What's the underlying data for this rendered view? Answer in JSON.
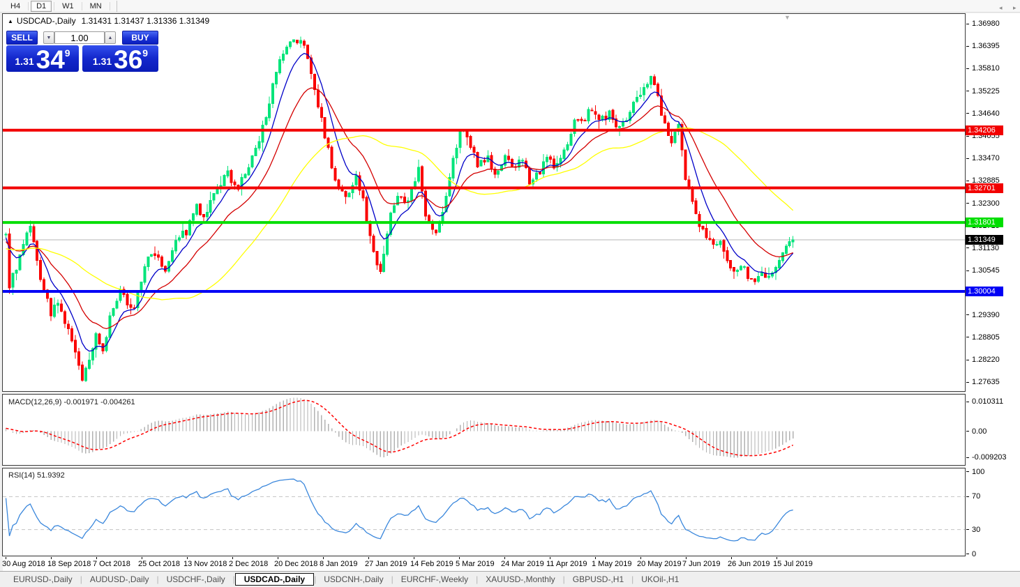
{
  "toolbar": {
    "timeframes": [
      {
        "label": "H4",
        "active": false
      },
      {
        "label": "D1",
        "active": true
      },
      {
        "label": "W1",
        "active": false
      },
      {
        "label": "MN",
        "active": false
      }
    ]
  },
  "window": {
    "title": "USDCAD-,Daily",
    "ohlc": "1.31431 1.31437 1.31336 1.31349",
    "collapse_glyph": "▲",
    "shift_marker_glyph": "▼"
  },
  "trade_panel": {
    "sell_label": "SELL",
    "buy_label": "BUY",
    "volume": "1.00",
    "down_glyph": "▼",
    "up_glyph": "▲",
    "bid": {
      "base": "1.31",
      "big": "34",
      "sup": "9"
    },
    "ask": {
      "base": "1.31",
      "big": "36",
      "sup": "9"
    }
  },
  "tabs": {
    "items": [
      {
        "label": "EURUSD-,Daily",
        "active": false
      },
      {
        "label": "AUDUSD-,Daily",
        "active": false
      },
      {
        "label": "USDCHF-,Daily",
        "active": false
      },
      {
        "label": "USDCAD-,Daily",
        "active": true
      },
      {
        "label": "USDCNH-,Daily",
        "active": false
      },
      {
        "label": "EURCHF-,Weekly",
        "active": false
      },
      {
        "label": "XAUUSD-,Monthly",
        "active": false
      },
      {
        "label": "GBPUSD-,H1",
        "active": false
      },
      {
        "label": "UKOil-,H1",
        "active": false
      }
    ],
    "scroll_left_glyph": "◂",
    "scroll_right_glyph": "▸"
  },
  "chart_data": {
    "type": "candlestick",
    "symbol": "USDCAD-",
    "timeframe": "Daily",
    "main": {
      "ylim": [
        1.27405,
        1.37235
      ],
      "yticks": [
        "1.36980",
        "1.36395",
        "1.35810",
        "1.35225",
        "1.34640",
        "1.34055",
        "1.33470",
        "1.32885",
        "1.32300",
        "1.31715",
        "1.31130",
        "1.30545",
        "1.29390",
        "1.28805",
        "1.28220",
        "1.27635"
      ],
      "hlines": [
        {
          "price": 1.34206,
          "label": "1.34206",
          "color": "#F20000",
          "thickness": 4
        },
        {
          "price": 1.32701,
          "label": "1.32701",
          "color": "#F20000",
          "thickness": 4
        },
        {
          "price": 1.31801,
          "label": "1.31801",
          "color": "#00DE00",
          "thickness": 4
        },
        {
          "price": 1.30004,
          "label": "1.30004",
          "color": "#0000F5",
          "thickness": 4
        }
      ],
      "current": {
        "price": 1.31349,
        "label": "1.31349",
        "line_color": "#B4B4B4",
        "badge_bg": "#000000"
      },
      "bull_color": "#00E47A",
      "bear_color": "#FA0000",
      "ma": [
        {
          "type": "ema",
          "period": 8,
          "color": "#0000C8"
        },
        {
          "type": "ema",
          "period": 20,
          "color": "#D40000"
        },
        {
          "type": "sma",
          "period": 45,
          "color": "#FFFF00"
        }
      ]
    },
    "candles": {
      "count": 228,
      "seed": 9,
      "noise": 0.0011,
      "wick": 0.0021,
      "step": 4.97,
      "body_width": 3,
      "warmup": {
        "count": 60,
        "from": 1.306,
        "to": 1.314
      },
      "close_anchors": [
        [
          0,
          1.314
        ],
        [
          1,
          1.302
        ],
        [
          3,
          1.3065
        ],
        [
          5,
          1.312
        ],
        [
          7,
          1.3165
        ],
        [
          9,
          1.3075
        ],
        [
          11,
          1.3
        ],
        [
          13,
          1.2945
        ],
        [
          15,
          1.2965
        ],
        [
          17,
          1.292
        ],
        [
          19,
          1.2875
        ],
        [
          21,
          1.28
        ],
        [
          22,
          1.2778
        ],
        [
          24,
          1.282
        ],
        [
          26,
          1.289
        ],
        [
          28,
          1.2845
        ],
        [
          30,
          1.293
        ],
        [
          33,
          1.2995
        ],
        [
          35,
          1.2975
        ],
        [
          37,
          1.2955
        ],
        [
          40,
          1.307
        ],
        [
          43,
          1.3105
        ],
        [
          46,
          1.306
        ],
        [
          49,
          1.314
        ],
        [
          52,
          1.3155
        ],
        [
          55,
          1.322
        ],
        [
          57,
          1.3185
        ],
        [
          61,
          1.327
        ],
        [
          64,
          1.3305
        ],
        [
          67,
          1.327
        ],
        [
          70,
          1.3325
        ],
        [
          73,
          1.339
        ],
        [
          76,
          1.35
        ],
        [
          79,
          1.3595
        ],
        [
          82,
          1.3645
        ],
        [
          85,
          1.3655
        ],
        [
          87,
          1.3615
        ],
        [
          90,
          1.348
        ],
        [
          93,
          1.3375
        ],
        [
          95,
          1.3285
        ],
        [
          98,
          1.3245
        ],
        [
          101,
          1.33
        ],
        [
          103,
          1.3235
        ],
        [
          106,
          1.31
        ],
        [
          108,
          1.306
        ],
        [
          111,
          1.3195
        ],
        [
          113,
          1.3255
        ],
        [
          116,
          1.323
        ],
        [
          119,
          1.3315
        ],
        [
          121,
          1.3205
        ],
        [
          124,
          1.315
        ],
        [
          126,
          1.3205
        ],
        [
          129,
          1.334
        ],
        [
          131,
          1.3425
        ],
        [
          134,
          1.338
        ],
        [
          136,
          1.3335
        ],
        [
          139,
          1.335
        ],
        [
          141,
          1.33
        ],
        [
          144,
          1.3345
        ],
        [
          146,
          1.333
        ],
        [
          149,
          1.3335
        ],
        [
          151,
          1.329
        ],
        [
          154,
          1.3315
        ],
        [
          156,
          1.3345
        ],
        [
          159,
          1.3325
        ],
        [
          161,
          1.336
        ],
        [
          164,
          1.345
        ],
        [
          166,
          1.344
        ],
        [
          169,
          1.3475
        ],
        [
          171,
          1.3445
        ],
        [
          174,
          1.3465
        ],
        [
          176,
          1.343
        ],
        [
          179,
          1.344
        ],
        [
          181,
          1.3485
        ],
        [
          184,
          1.3535
        ],
        [
          186,
          1.3565
        ],
        [
          188,
          1.3505
        ],
        [
          190,
          1.3435
        ],
        [
          192,
          1.3385
        ],
        [
          194,
          1.3425
        ],
        [
          196,
          1.3295
        ],
        [
          198,
          1.3235
        ],
        [
          200,
          1.318
        ],
        [
          202,
          1.3145
        ],
        [
          204,
          1.3115
        ],
        [
          206,
          1.3125
        ],
        [
          208,
          1.3085
        ],
        [
          210,
          1.305
        ],
        [
          212,
          1.3068
        ],
        [
          214,
          1.3042
        ],
        [
          216,
          1.3028
        ],
        [
          218,
          1.3058
        ],
        [
          220,
          1.3035
        ],
        [
          222,
          1.3062
        ],
        [
          224,
          1.3098
        ],
        [
          226,
          1.3128
        ],
        [
          227,
          1.31349
        ]
      ]
    },
    "x_axis": {
      "labels": [
        "30 Aug 2018",
        "18 Sep 2018",
        "7 Oct 2018",
        "25 Oct 2018",
        "13 Nov 2018",
        "2 Dec 2018",
        "20 Dec 2018",
        "8 Jan 2019",
        "27 Jan 2019",
        "14 Feb 2019",
        "5 Mar 2019",
        "24 Mar 2019",
        "11 Apr 2019",
        "1 May 2019",
        "20 May 2019",
        "7 Jun 2019",
        "26 Jun 2019",
        "15 Jul 2019"
      ],
      "first_tick_x": 8,
      "tick_step": 65
    },
    "macd": {
      "name": "MACD(12,26,9)",
      "values": "-0.001971 -0.004261",
      "fast": 12,
      "slow": 26,
      "signal": 9,
      "ylim": [
        -0.011858,
        0.012846
      ],
      "yticks": [
        "0.010311",
        "0.00",
        "-0.009203"
      ],
      "hist_color": "#B2B2B2",
      "signal_color": "#FF0000"
    },
    "rsi": {
      "name": "RSI(14)",
      "value": "51.9392",
      "period": 14,
      "ylim": [
        -1.7,
        104.2
      ],
      "yticks": [
        "100",
        "70",
        "30",
        "0"
      ],
      "levels": [
        70,
        30
      ],
      "color": "#3A87DC",
      "level_color": "#C2C2C2"
    }
  }
}
